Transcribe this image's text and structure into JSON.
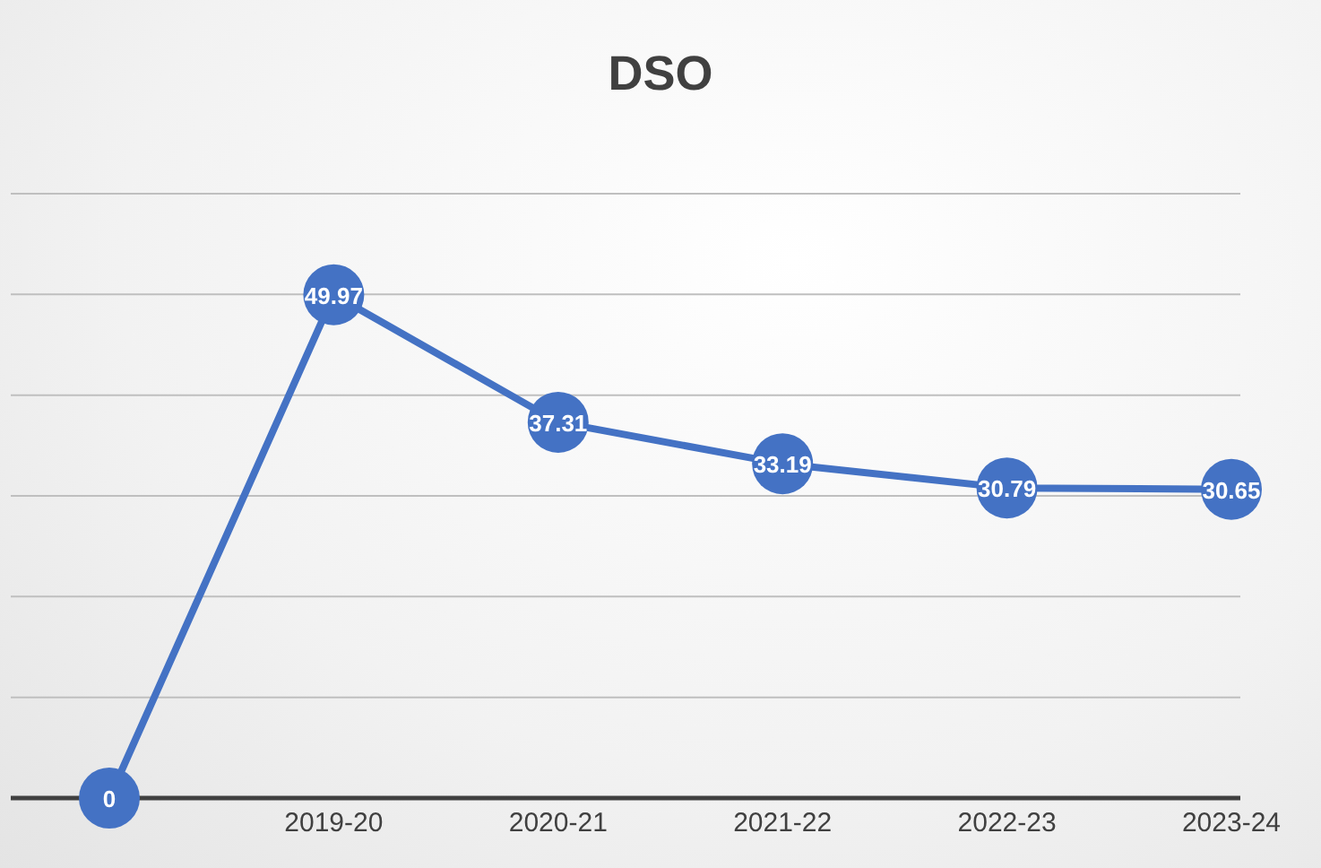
{
  "chart_data": {
    "type": "line",
    "title": "DSO",
    "categories": [
      null,
      "2019-20",
      "2020-21",
      "2021-22",
      "2022-23",
      "2023-24"
    ],
    "series": [
      {
        "color": "#4472c4",
        "values": [
          0,
          49.97,
          37.31,
          33.19,
          30.79,
          30.65
        ]
      }
    ],
    "ylim": [
      0,
      60
    ],
    "yticks": [
      {
        "value": 0,
        "label": null
      },
      {
        "value": 10,
        "label": null
      },
      {
        "value": 20,
        "label": null
      },
      {
        "value": 30,
        "label": null
      },
      {
        "value": 40,
        "label": null
      },
      {
        "value": 50,
        "label": null
      },
      {
        "value": 60,
        "label": null
      }
    ],
    "tick_labels": "x",
    "grid": "y",
    "marker": "circle",
    "line_style": "solid",
    "data_labels": true
  }
}
